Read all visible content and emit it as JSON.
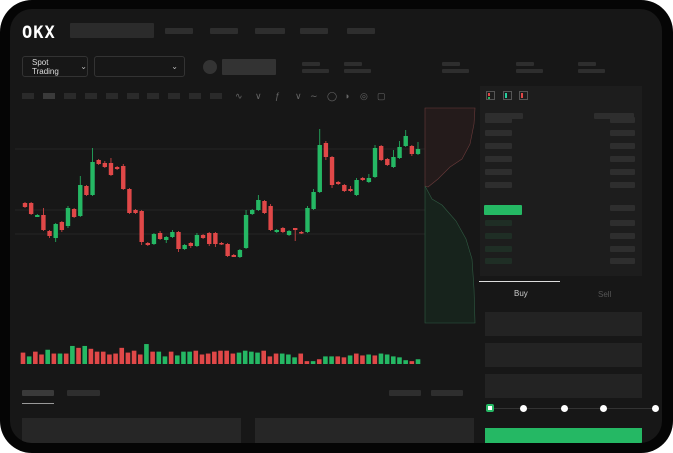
{
  "brand": {
    "logo_text": "OKX"
  },
  "toolbar": {
    "market_type": "Spot Trading"
  },
  "trade": {
    "buy_label": "Buy",
    "sell_label": "Sell",
    "leverage_steps": 5,
    "leverage_selected": 0
  },
  "colors": {
    "up": "#25b864",
    "down": "#e04848",
    "background": "#171717",
    "accent": "#25b864"
  },
  "icons": [
    "chevron-down-icon",
    "indicator-icon",
    "compare-icon",
    "formula-icon",
    "draw-line-icon",
    "ruler-icon",
    "gauge-icon",
    "settings-circle-icon",
    "fullscreen-icon",
    "orderbook-both-icon",
    "orderbook-bids-icon",
    "orderbook-asks-icon"
  ],
  "chart_data": {
    "type": "candlestick",
    "candles": [
      [
        97,
        98,
        92,
        93
      ],
      [
        97,
        98,
        85,
        86
      ],
      [
        83,
        86,
        83,
        85
      ],
      [
        85,
        92,
        69,
        70
      ],
      [
        69,
        70,
        62,
        64
      ],
      [
        62,
        77,
        58,
        76
      ],
      [
        78,
        79,
        68,
        70
      ],
      [
        74,
        94,
        72,
        92
      ],
      [
        91,
        92,
        82,
        83
      ],
      [
        84,
        124,
        83,
        115
      ],
      [
        114,
        115,
        104,
        105
      ],
      [
        105,
        152,
        104,
        138
      ],
      [
        140,
        141,
        135,
        136
      ],
      [
        137,
        139,
        132,
        133
      ],
      [
        137,
        142,
        124,
        125
      ],
      [
        133,
        134,
        130,
        131
      ],
      [
        134,
        136,
        110,
        111
      ],
      [
        111,
        112,
        86,
        87
      ],
      [
        90,
        91,
        86,
        87
      ],
      [
        89,
        90,
        55,
        58
      ],
      [
        57,
        58,
        54,
        55
      ],
      [
        56,
        67,
        55,
        66
      ],
      [
        67,
        69,
        60,
        61
      ],
      [
        60,
        64,
        57,
        63
      ],
      [
        63,
        70,
        62,
        68
      ],
      [
        68,
        69,
        48,
        51
      ],
      [
        51,
        56,
        50,
        55
      ],
      [
        57,
        58,
        52,
        54
      ],
      [
        54,
        67,
        53,
        65
      ],
      [
        65,
        66,
        61,
        62
      ],
      [
        67,
        68,
        54,
        56
      ],
      [
        67,
        68,
        53,
        56
      ],
      [
        57,
        58,
        55,
        56
      ],
      [
        56,
        57,
        43,
        44
      ],
      [
        45,
        46,
        43,
        43
      ],
      [
        43,
        51,
        42,
        50
      ],
      [
        52,
        90,
        51,
        85
      ],
      [
        86,
        91,
        85,
        90
      ],
      [
        90,
        105,
        89,
        100
      ],
      [
        99,
        100,
        86,
        87
      ],
      [
        94,
        96,
        69,
        70
      ],
      [
        68,
        71,
        67,
        70
      ],
      [
        72,
        73,
        67,
        68
      ],
      [
        65,
        70,
        64,
        69
      ],
      [
        72,
        72,
        59,
        70
      ],
      [
        68,
        69,
        66,
        67
      ],
      [
        68,
        94,
        67,
        92
      ],
      [
        91,
        111,
        90,
        108
      ],
      [
        108,
        171,
        107,
        155
      ],
      [
        157,
        159,
        140,
        143
      ],
      [
        143,
        144,
        112,
        115
      ],
      [
        118,
        119,
        115,
        116
      ],
      [
        115,
        116,
        108,
        109
      ],
      [
        111,
        114,
        108,
        109
      ],
      [
        105,
        122,
        104,
        120
      ],
      [
        122,
        123,
        119,
        120
      ],
      [
        118,
        126,
        117,
        122
      ],
      [
        123,
        155,
        122,
        152
      ],
      [
        154,
        155,
        139,
        140
      ],
      [
        141,
        142,
        134,
        135
      ],
      [
        133,
        150,
        132,
        143
      ],
      [
        142,
        159,
        141,
        153
      ],
      [
        154,
        170,
        153,
        164
      ],
      [
        154,
        155,
        144,
        146
      ],
      [
        146,
        158,
        145,
        151
      ]
    ],
    "volume": [
      12,
      8,
      13,
      10,
      15,
      11,
      11,
      11,
      19,
      17,
      19,
      16,
      13,
      13,
      10,
      11,
      17,
      12,
      14,
      10,
      21,
      13,
      13,
      8,
      13,
      9,
      13,
      13,
      14,
      10,
      11,
      13,
      14,
      14,
      11,
      12,
      14,
      13,
      12,
      14,
      8,
      11,
      11,
      10,
      7,
      11,
      3,
      3,
      5,
      8,
      8,
      8,
      7,
      9,
      11,
      9,
      10,
      9,
      11,
      10,
      8,
      7,
      4,
      3,
      5
    ],
    "volume_colors": [
      "down",
      "up",
      "down",
      "down",
      "up",
      "down",
      "up",
      "down",
      "up",
      "down",
      "up",
      "down",
      "down",
      "down",
      "down",
      "down",
      "down",
      "down",
      "down",
      "down",
      "up",
      "down",
      "up",
      "up",
      "down",
      "up",
      "up",
      "up",
      "down",
      "down",
      "down",
      "down",
      "down",
      "down",
      "down",
      "up",
      "up",
      "up",
      "up",
      "down",
      "down",
      "down",
      "up",
      "up",
      "up",
      "down",
      "down",
      "up",
      "down",
      "up",
      "up",
      "down",
      "down",
      "up",
      "down",
      "down",
      "up",
      "down",
      "up",
      "up",
      "up",
      "up",
      "up",
      "down",
      "up"
    ],
    "grid": true
  }
}
